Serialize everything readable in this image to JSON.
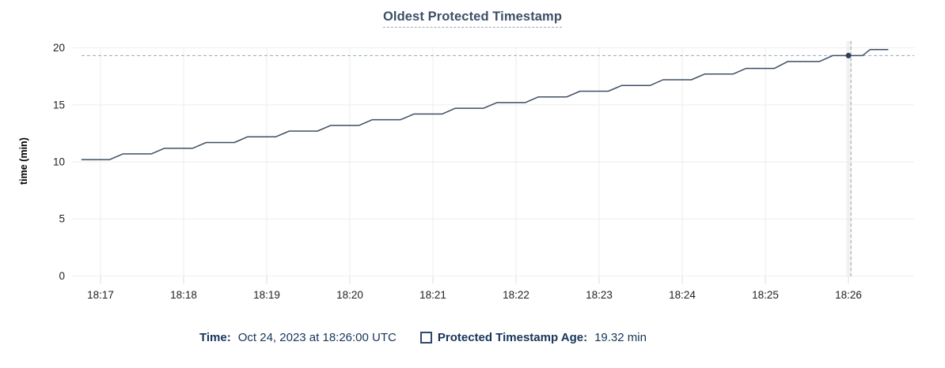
{
  "chart": {
    "title": "Oldest Protected Timestamp",
    "ylabel": "time (min)"
  },
  "legend": {
    "time_label": "Time:",
    "time_value": "Oct 24, 2023 at 18:26:00 UTC",
    "series_label": "Protected Timestamp Age:",
    "series_value": "19.32 min"
  },
  "chart_data": {
    "type": "line",
    "title": "Oldest Protected Timestamp",
    "xlabel": "",
    "ylabel": "time (min)",
    "grid": true,
    "xticks": [
      "18:17",
      "18:18",
      "18:19",
      "18:20",
      "18:21",
      "18:22",
      "18:23",
      "18:24",
      "18:25",
      "18:26"
    ],
    "yticks": [
      0,
      5,
      10,
      15,
      20
    ],
    "ylim": [
      0,
      20.6
    ],
    "x_range_minutes_from_1817": [
      -0.23,
      9.79
    ],
    "series": [
      {
        "name": "Protected Timestamp Age",
        "points": [
          [
            -0.23,
            10.2
          ],
          [
            0.11,
            10.2
          ],
          [
            0.27,
            10.7
          ],
          [
            0.61,
            10.7
          ],
          [
            0.77,
            11.2
          ],
          [
            1.11,
            11.2
          ],
          [
            1.27,
            11.7
          ],
          [
            1.61,
            11.7
          ],
          [
            1.77,
            12.2
          ],
          [
            2.11,
            12.2
          ],
          [
            2.27,
            12.7
          ],
          [
            2.61,
            12.7
          ],
          [
            2.77,
            13.2
          ],
          [
            3.11,
            13.2
          ],
          [
            3.27,
            13.7
          ],
          [
            3.61,
            13.7
          ],
          [
            3.77,
            14.2
          ],
          [
            4.11,
            14.2
          ],
          [
            4.27,
            14.7
          ],
          [
            4.61,
            14.7
          ],
          [
            4.77,
            15.2
          ],
          [
            5.11,
            15.2
          ],
          [
            5.27,
            15.7
          ],
          [
            5.61,
            15.7
          ],
          [
            5.77,
            16.2
          ],
          [
            6.11,
            16.2
          ],
          [
            6.27,
            16.7
          ],
          [
            6.61,
            16.7
          ],
          [
            6.77,
            17.2
          ],
          [
            7.11,
            17.2
          ],
          [
            7.27,
            17.7
          ],
          [
            7.61,
            17.7
          ],
          [
            7.77,
            18.2
          ],
          [
            8.11,
            18.2
          ],
          [
            8.27,
            18.8
          ],
          [
            8.65,
            18.8
          ],
          [
            8.81,
            19.32
          ],
          [
            9.17,
            19.32
          ],
          [
            9.26,
            19.85
          ],
          [
            9.48,
            19.85
          ]
        ]
      }
    ],
    "hover": {
      "time_minutes": 9.0,
      "crosshair_minutes": 9.03,
      "age_min": 19.32,
      "time_label": "Oct 24, 2023 at 18:26:00 UTC",
      "value_label": "19.32 min"
    },
    "colors": {
      "line": "#3f4e64",
      "dot": "#2c4059",
      "crosshair": "#9fb4c1",
      "grid": "#eeeeee",
      "axis_tick": "#dcdcdc",
      "hover_band": "#ebebeb",
      "legend_text": "#16355a",
      "title_text": "#3d4f66"
    }
  }
}
